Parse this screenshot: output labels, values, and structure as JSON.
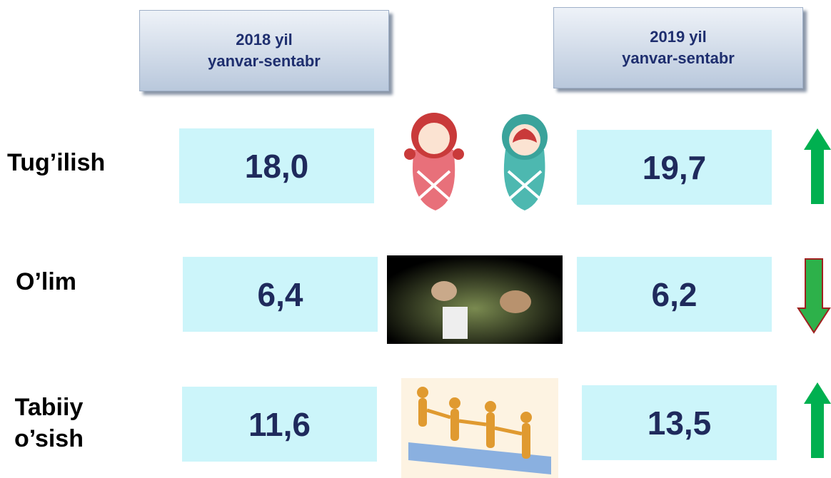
{
  "headers": [
    "2018 yil\nyanvar-sentabr",
    "2019 yil\nyanvar-sentabr"
  ],
  "rows": [
    {
      "label": "Tug’ilish",
      "values": [
        "18,0",
        "19,7"
      ]
    },
    {
      "label": "O’lim",
      "values": [
        "6,4",
        "6,2"
      ]
    },
    {
      "label": "Tabiiy\no’sish",
      "values": [
        "11,6",
        "13,5"
      ]
    }
  ]
}
